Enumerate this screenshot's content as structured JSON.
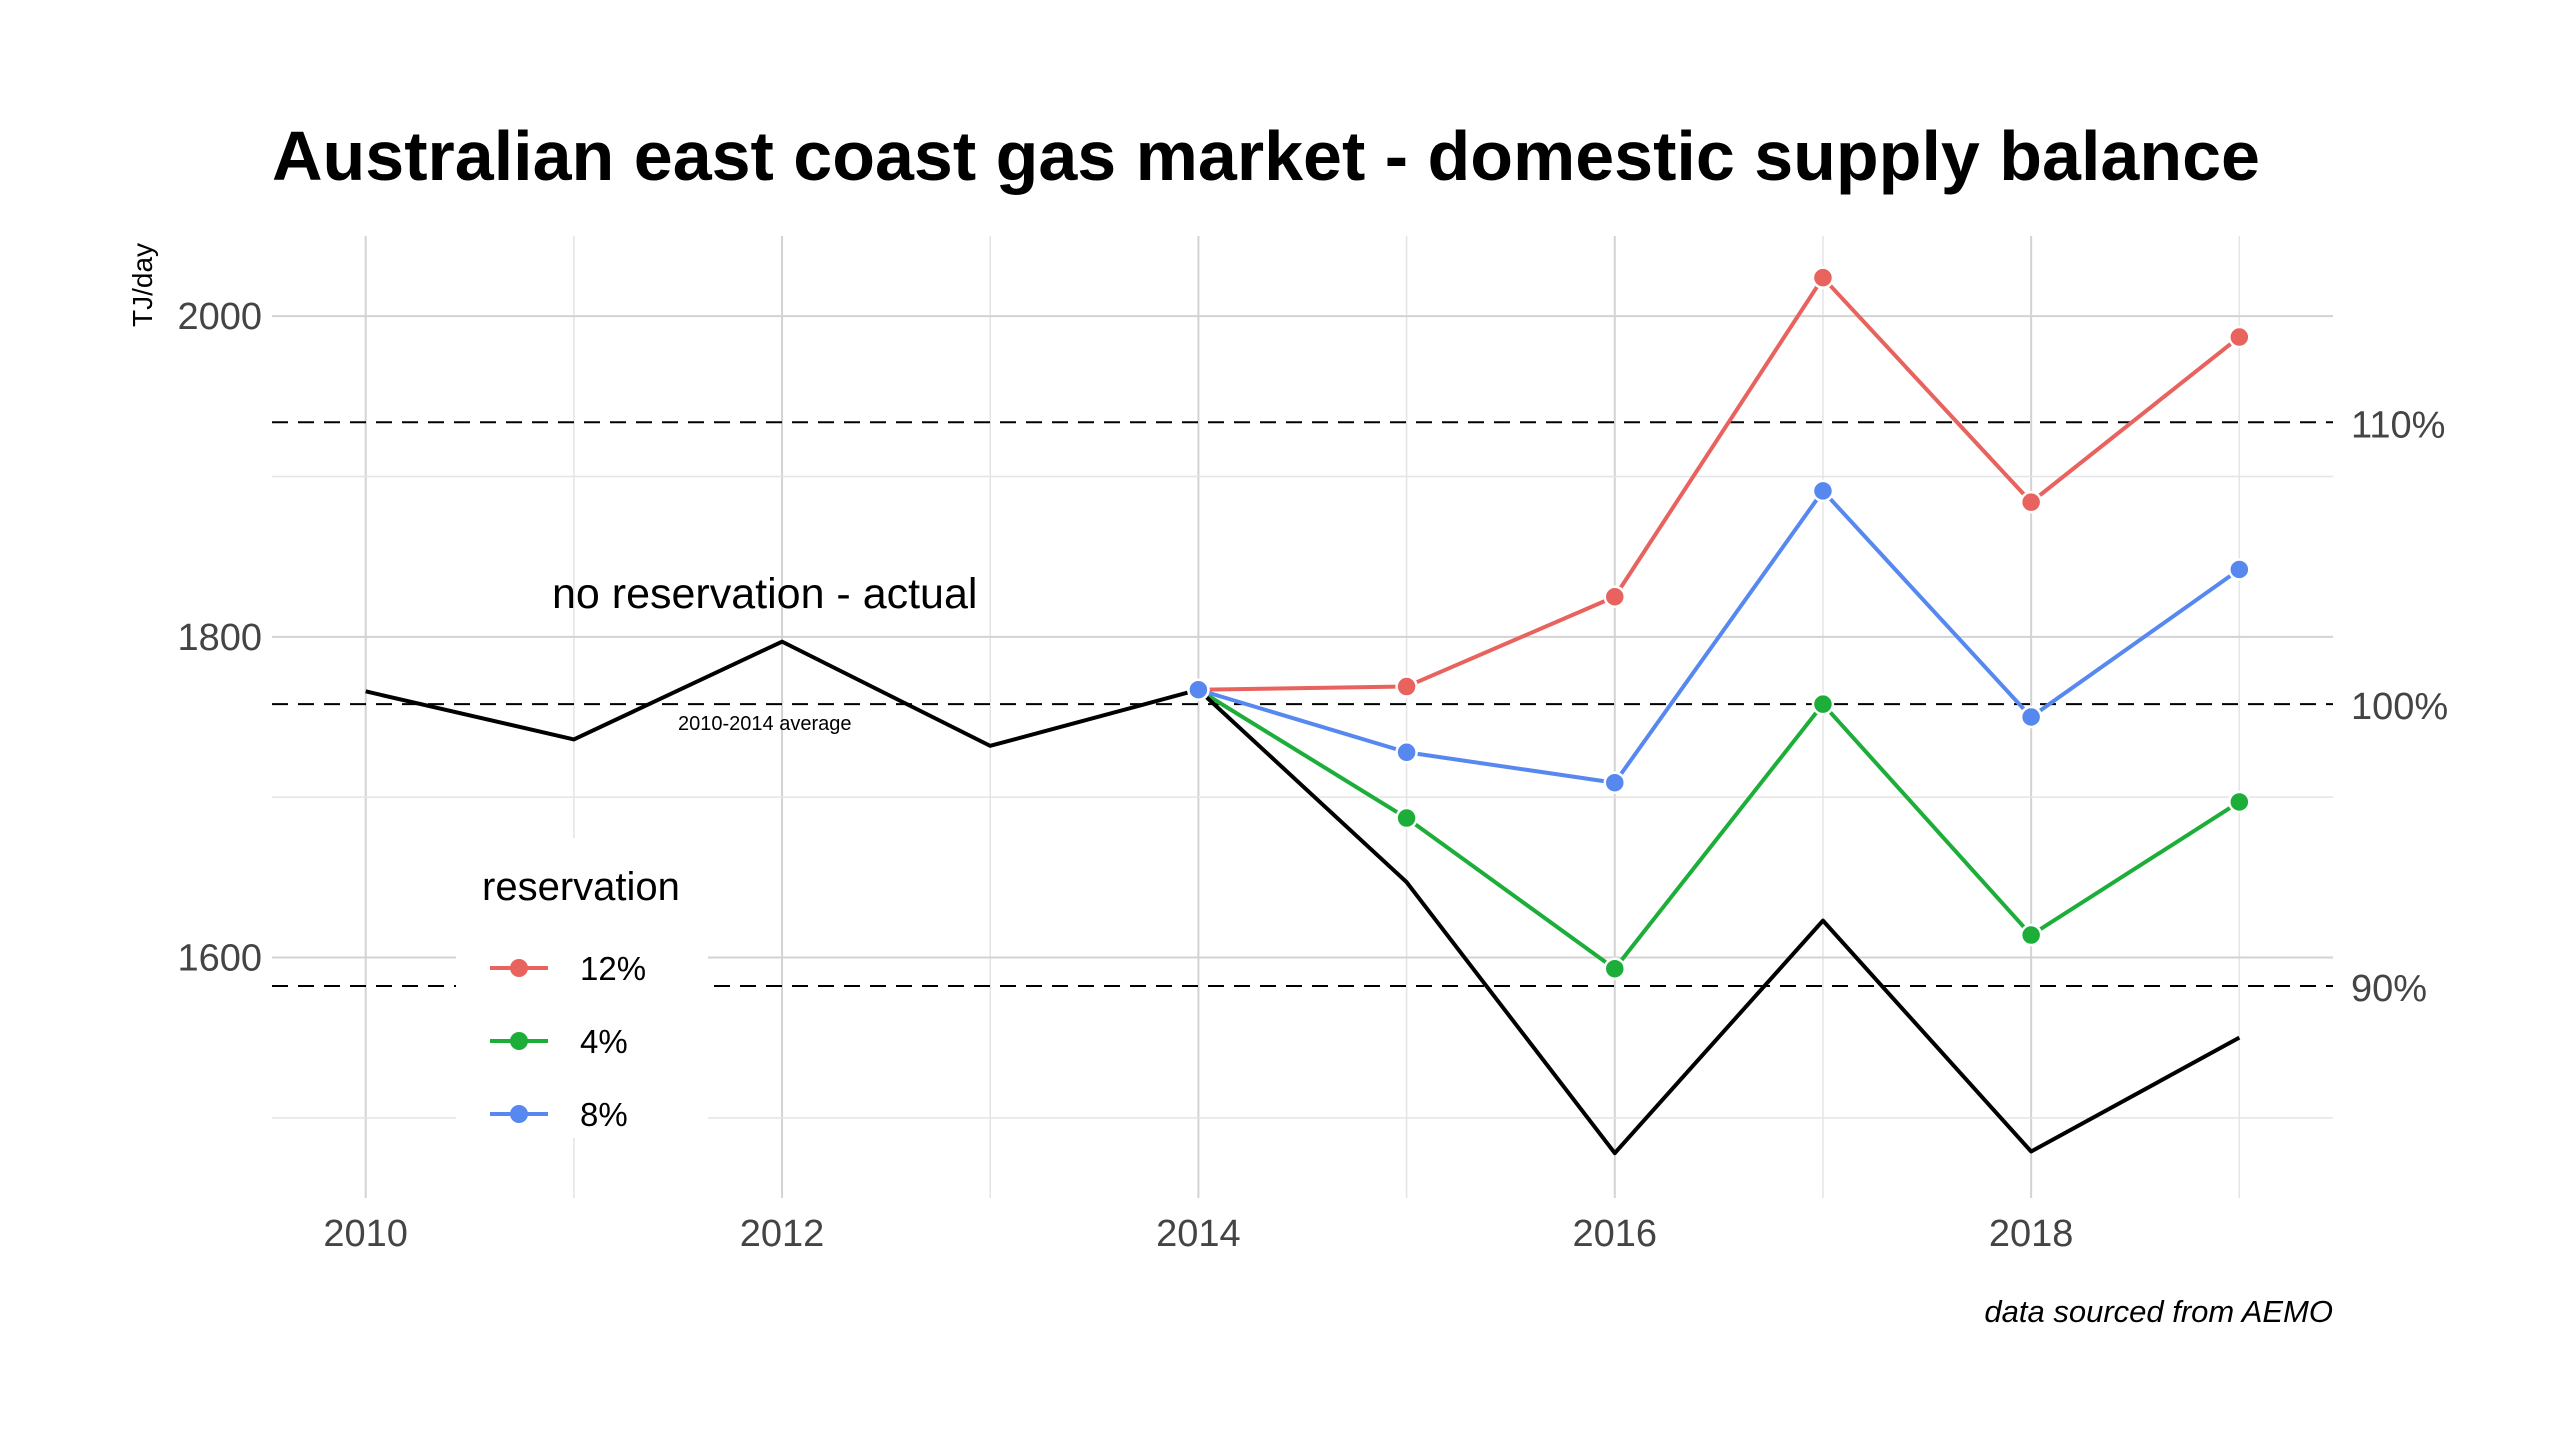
{
  "chart_data": {
    "type": "line",
    "title": "Australian east coast gas market - domestic supply balance",
    "ylabel": "TJ/day",
    "caption": "data sourced from AEMO",
    "x_ticks": [
      2010,
      2012,
      2014,
      2016,
      2018
    ],
    "y_ticks": [
      1600,
      1800,
      2000
    ],
    "xlim": [
      2009.55,
      2019.45
    ],
    "ylim": [
      1450,
      2050
    ],
    "grid": true,
    "baseline": {
      "label": "2010-2014 average",
      "value": 1758,
      "reference_lines": [
        {
          "label": "110%",
          "value": 1933.8
        },
        {
          "label": "100%",
          "value": 1758
        },
        {
          "label": "90%",
          "value": 1582.2
        }
      ]
    },
    "actual": {
      "label": "no reservation - actual",
      "color": "#000000",
      "x": [
        2010,
        2011,
        2012,
        2013,
        2014,
        2015,
        2016,
        2017,
        2018,
        2019
      ],
      "y": [
        1766,
        1736,
        1797,
        1732,
        1767,
        1647,
        1478,
        1623,
        1479,
        1550
      ]
    },
    "legend": {
      "title": "reservation",
      "placement": "bottom-left"
    },
    "series": [
      {
        "name": "12%",
        "color": "#E8625E",
        "x": [
          2014,
          2015,
          2016,
          2017,
          2018,
          2019
        ],
        "y": [
          1767,
          1769,
          1825,
          2024,
          1884,
          1987
        ]
      },
      {
        "name": "4%",
        "color": "#1DAE3A",
        "x": [
          2014,
          2015,
          2016,
          2017,
          2018,
          2019
        ],
        "y": [
          1767,
          1687,
          1593,
          1758,
          1614,
          1697
        ]
      },
      {
        "name": "8%",
        "color": "#5788F0",
        "x": [
          2014,
          2015,
          2016,
          2017,
          2018,
          2019
        ],
        "y": [
          1767,
          1728,
          1709,
          1891,
          1750,
          1842
        ]
      }
    ]
  }
}
